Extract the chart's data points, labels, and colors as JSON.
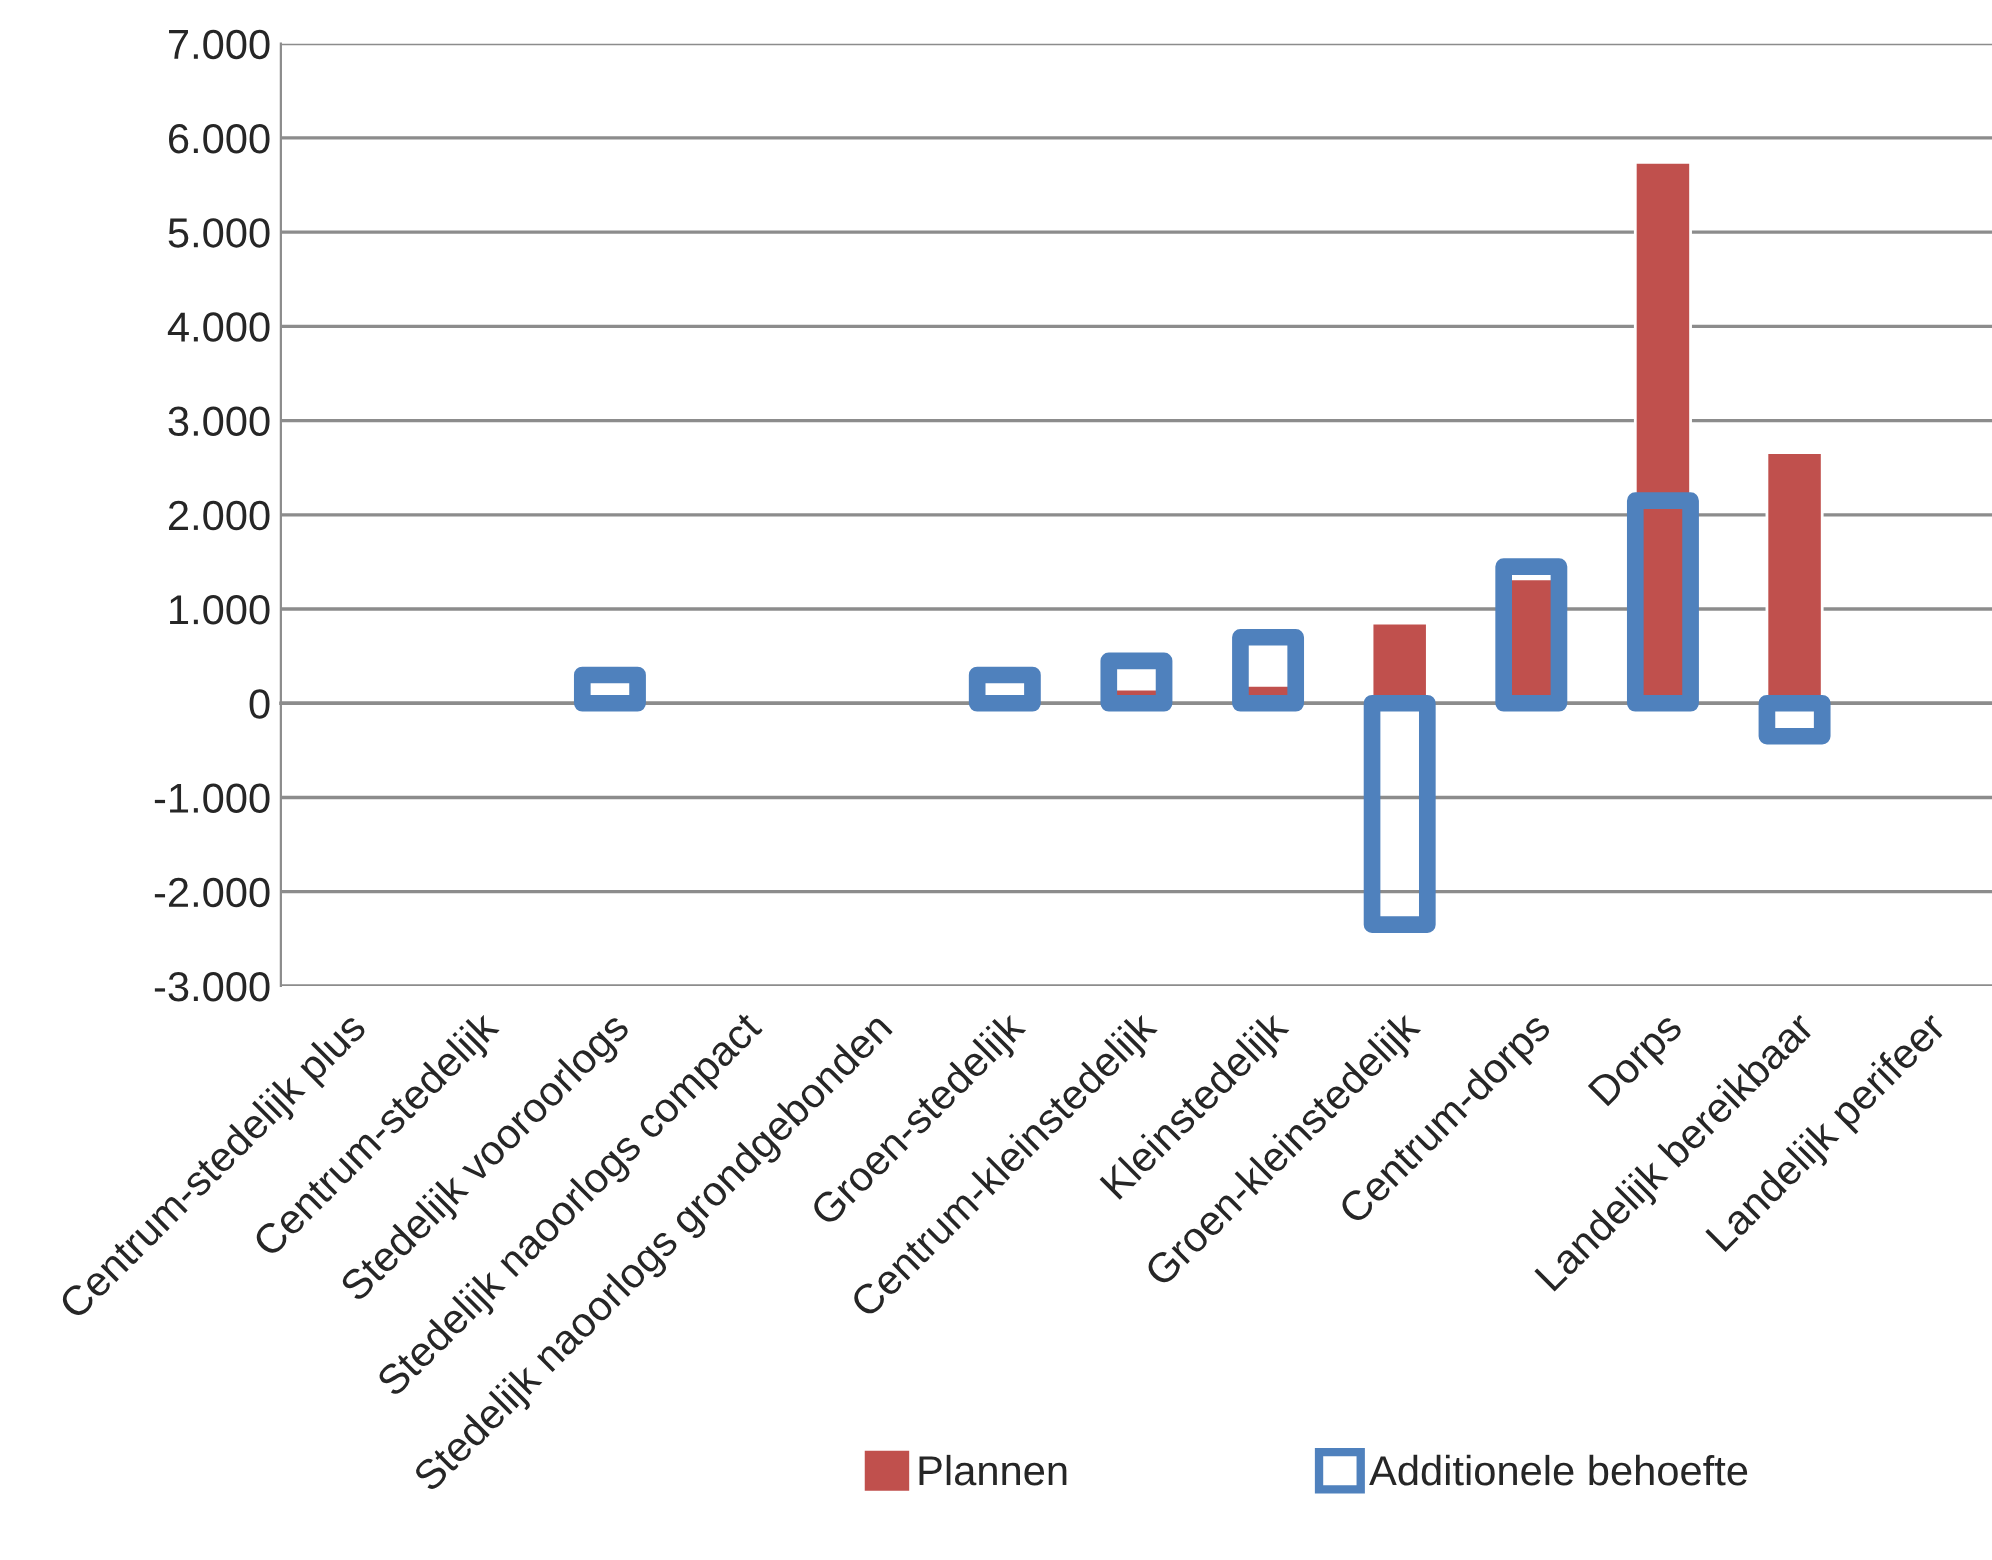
{
  "chart_data": {
    "type": "bar",
    "categories": [
      "Centrum-stedelijk plus",
      "Centrum-stedelijk",
      "Stedelijk vooroorlogs",
      "Stedelijk naoorlogs compact",
      "Stedelijk naoorlogs grondgebonden",
      "Groen-stedelijk",
      "Centrum-kleinstedelijk",
      "Kleinstedelijk",
      "Groen-kleinstedelijk",
      "Centrum-dorps",
      "Dorps",
      "Landelijk bereikbaar",
      "Landelijk perifeer"
    ],
    "series": [
      {
        "name": "Plannen",
        "color": "#c0504d",
        "values": [
          null,
          null,
          null,
          null,
          null,
          null,
          150,
          190,
          850,
          1320,
          5740,
          2660,
          null
        ]
      },
      {
        "name": "Additionele behoefte",
        "color": "#4f81bd",
        "values": [
          null,
          null,
          300,
          null,
          null,
          300,
          450,
          700,
          -2350,
          1450,
          2150,
          -350,
          null
        ]
      }
    ],
    "ylim": [
      -3000,
      7000
    ],
    "yticks": [
      {
        "value": -3000,
        "label": "-3.000"
      },
      {
        "value": -2000,
        "label": "-2.000"
      },
      {
        "value": -1000,
        "label": "-1.000"
      },
      0,
      {
        "value": 1000,
        "label": "1.000"
      },
      {
        "value": 2000,
        "label": "2.000"
      },
      {
        "value": 3000,
        "label": "3.000"
      },
      {
        "value": 4000,
        "label": "4.000"
      },
      {
        "value": 5000,
        "label": "5.000"
      },
      {
        "value": 6000,
        "label": "6.000"
      },
      {
        "value": 7000,
        "label": "7.000"
      }
    ],
    "grid": "y",
    "legend": "bottom"
  }
}
